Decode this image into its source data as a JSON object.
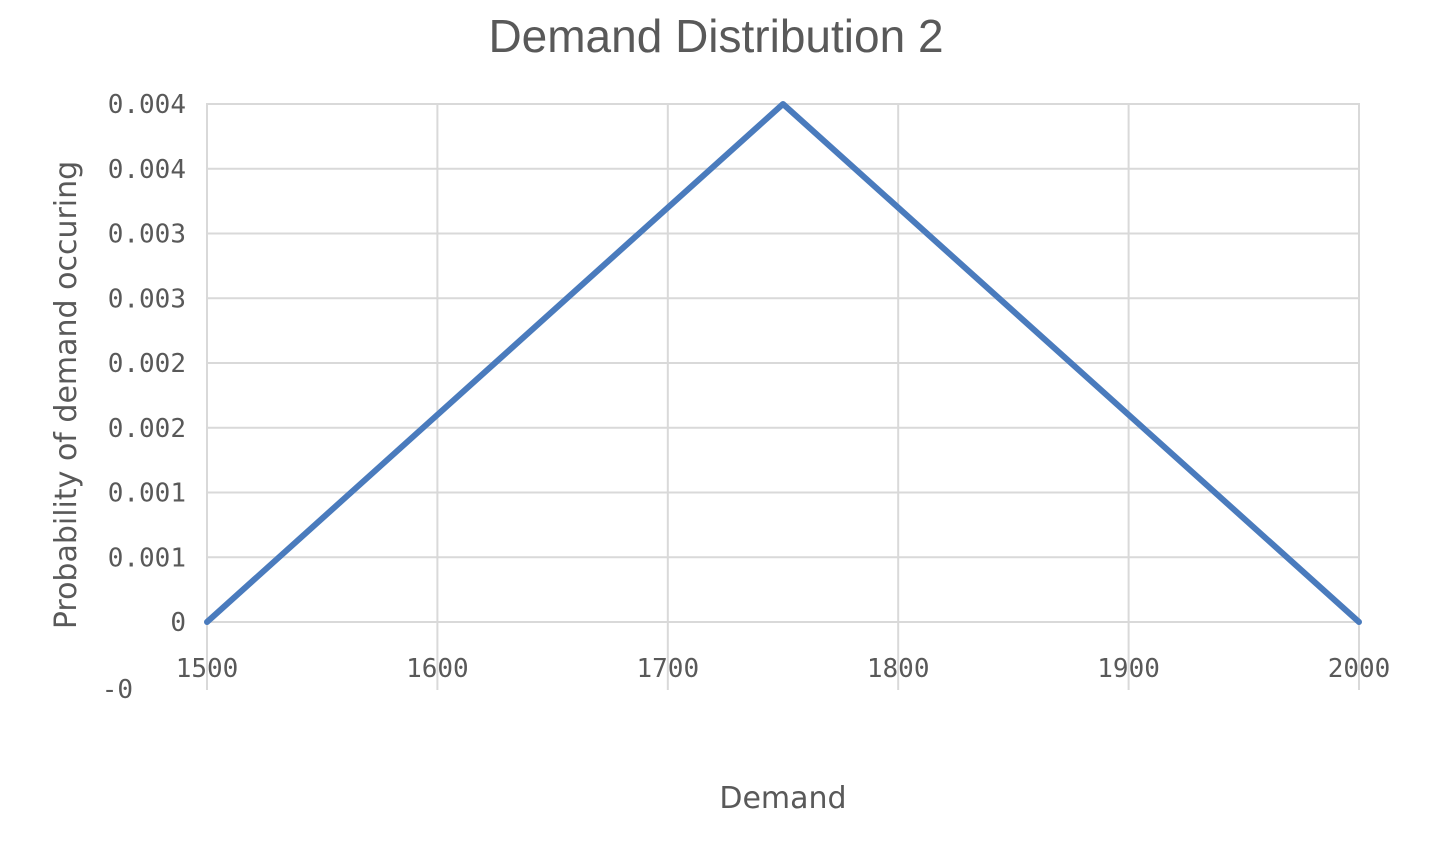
{
  "chart_data": {
    "type": "line",
    "title": "Demand Distribution 2",
    "xlabel": "Demand",
    "ylabel": "Probability of demand occuring",
    "xlim": [
      1500,
      2000
    ],
    "ylim": [
      0,
      0.004
    ],
    "x_ticks": [
      1500,
      1600,
      1700,
      1800,
      1900,
      2000
    ],
    "x_tick_labels": [
      "1500",
      "1600",
      "1700",
      "1800",
      "1900",
      "2000"
    ],
    "y_ticks": [
      0,
      0.0005,
      0.001,
      0.0015,
      0.002,
      0.0025,
      0.003,
      0.0035,
      0.004
    ],
    "y_tick_labels": [
      "0",
      "0.001",
      "0.001",
      "0.002",
      "0.002",
      "0.003",
      "0.003",
      "0.004",
      "0.004"
    ],
    "extra_y_label": "-0",
    "grid": true,
    "legend": "none",
    "series": [
      {
        "color": "#4a7bbd",
        "x": [
          1500,
          1750,
          2000
        ],
        "y": [
          0,
          0.004,
          0
        ]
      }
    ]
  }
}
